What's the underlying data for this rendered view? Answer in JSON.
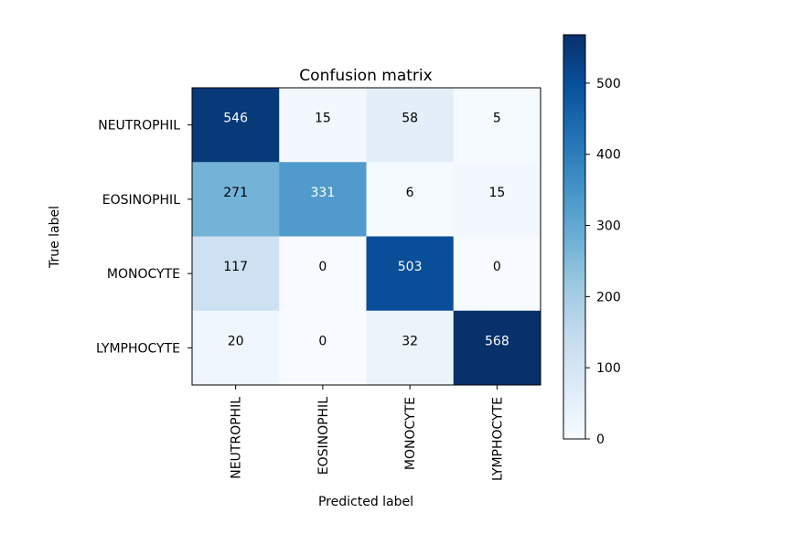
{
  "chart_data": {
    "type": "heatmap",
    "title": "Confusion matrix",
    "xlabel": "Predicted label",
    "ylabel": "True label",
    "row_labels": [
      "NEUTROPHIL",
      "EOSINOPHIL",
      "MONOCYTE",
      "LYMPHOCYTE"
    ],
    "col_labels": [
      "NEUTROPHIL",
      "EOSINOPHIL",
      "MONOCYTE",
      "LYMPHOCYTE"
    ],
    "matrix": [
      [
        546,
        15,
        58,
        5
      ],
      [
        271,
        331,
        6,
        15
      ],
      [
        117,
        0,
        503,
        0
      ],
      [
        20,
        0,
        32,
        568
      ]
    ],
    "colormap": "Blues",
    "colorbar": {
      "min": 0,
      "max": 568,
      "ticks": [
        0,
        100,
        200,
        300,
        400,
        500
      ]
    },
    "colors": {
      "low": "#f7fbff",
      "high": "#08306b",
      "text_dark": "#000000",
      "text_light": "#ffffff"
    }
  }
}
